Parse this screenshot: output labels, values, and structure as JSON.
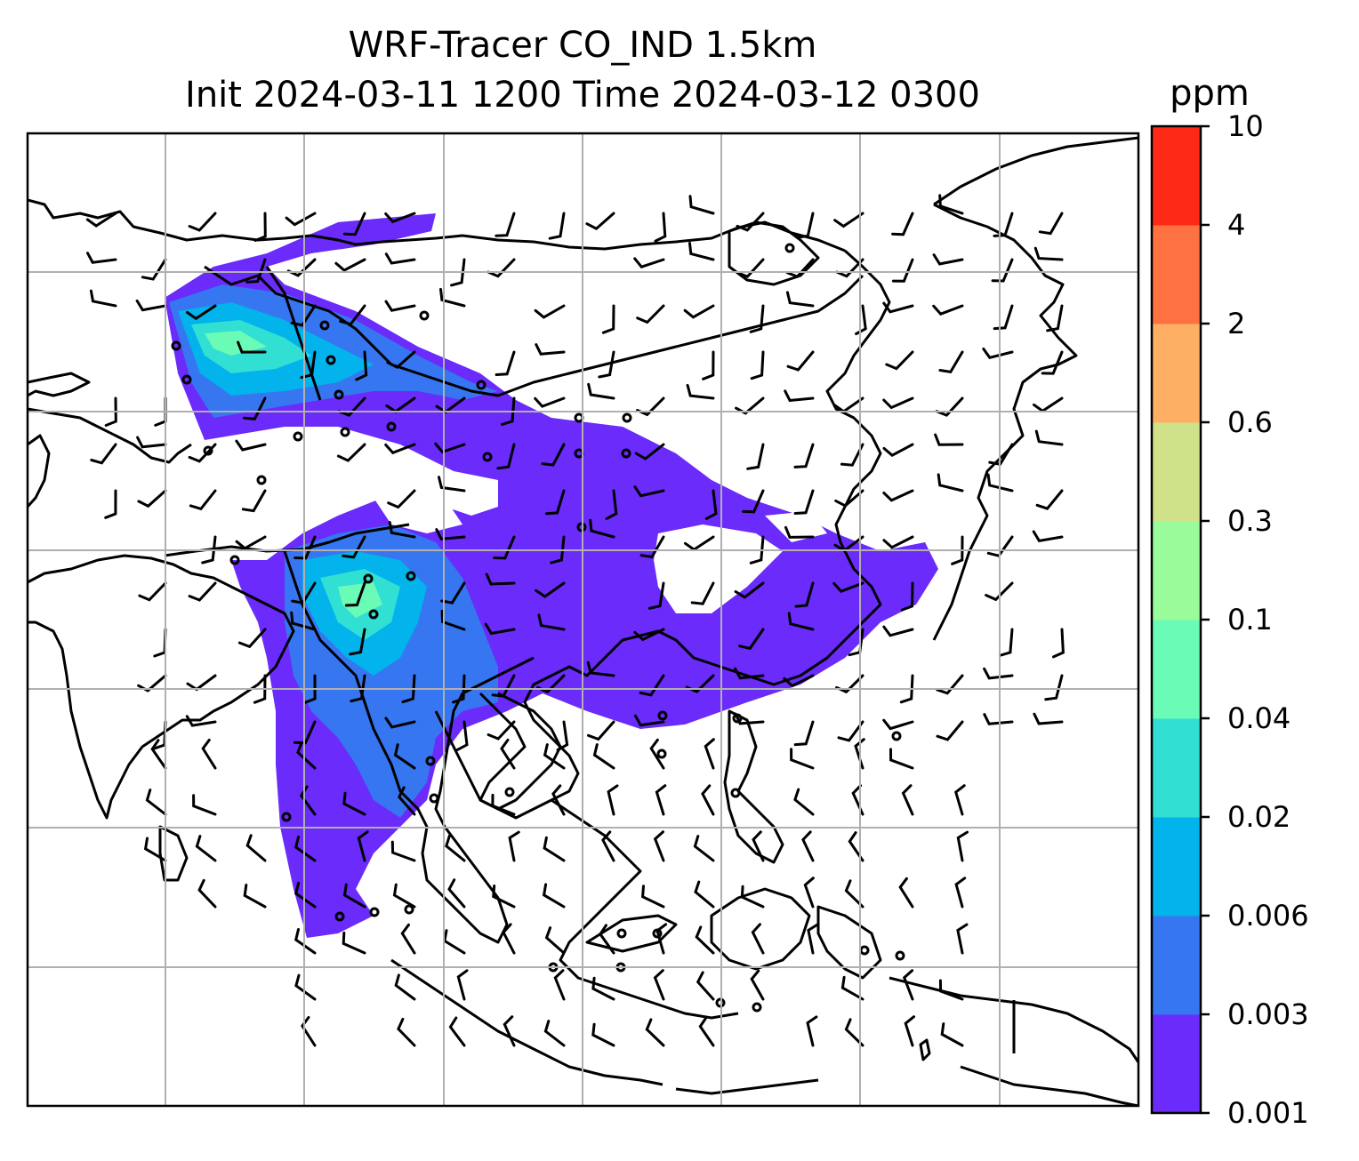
{
  "title_line1": "WRF-Tracer CO_IND 1.5km",
  "title_line2": "Init 2024-03-11 1200 Time 2024-03-12 0300",
  "colorbar": {
    "unit": "ppm",
    "levels": [
      "0.001",
      "0.003",
      "0.006",
      "0.02",
      "0.04",
      "0.1",
      "0.3",
      "0.6",
      "2",
      "4",
      "10"
    ],
    "colors": [
      "#6a2bfb",
      "#3676f1",
      "#02b3ec",
      "#31dfd3",
      "#6afbb7",
      "#9afb9b",
      "#cfe28a",
      "#fdb064",
      "#fe7141",
      "#fe2a17"
    ]
  },
  "colors": {
    "background": "#ffffff",
    "coastline": "#000000",
    "grid": "#b0b0b0"
  }
}
